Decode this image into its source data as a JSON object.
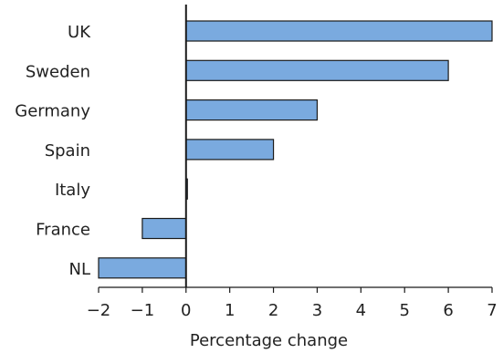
{
  "chart_data": {
    "type": "bar",
    "orientation": "horizontal",
    "categories": [
      "UK",
      "Sweden",
      "Germany",
      "Spain",
      "Italy",
      "France",
      "NL"
    ],
    "values": [
      7,
      6,
      3,
      2,
      0,
      -1,
      -2
    ],
    "title": "",
    "xlabel": "Percentage change",
    "ylabel": "",
    "xlim": [
      -2,
      7
    ],
    "xticks": [
      "−2",
      "−1",
      "0",
      "1",
      "2",
      "3",
      "4",
      "5",
      "6",
      "7"
    ],
    "grid": false,
    "bar_color": "#7aaadf",
    "bar_edge_color": "#1a1a1a"
  }
}
